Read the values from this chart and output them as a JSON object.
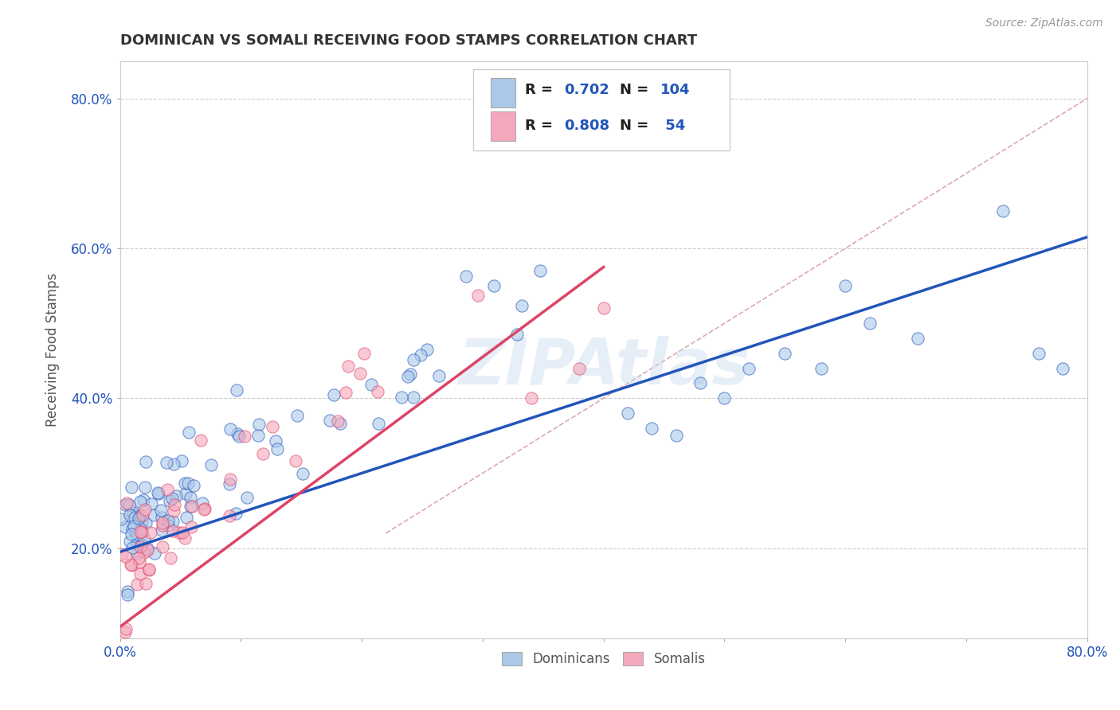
{
  "title": "DOMINICAN VS SOMALI RECEIVING FOOD STAMPS CORRELATION CHART",
  "source_text": "Source: ZipAtlas.com",
  "ylabel": "Receiving Food Stamps",
  "xlim": [
    0.0,
    0.8
  ],
  "ylim": [
    0.08,
    0.85
  ],
  "dominican_R": 0.702,
  "dominican_N": 104,
  "somali_R": 0.808,
  "somali_N": 54,
  "dominican_color": "#aac8e8",
  "somali_color": "#f5a8bc",
  "dominican_line_color": "#2255bb",
  "somali_line_color": "#dd4466",
  "ref_line_color": "#ddaaaa",
  "watermark": "ZIPAtlas",
  "title_color": "#333333",
  "background_color": "#ffffff",
  "grid_color": "#cccccc",
  "legend_color": "#2255bb",
  "dom_line_x": [
    0.0,
    0.8
  ],
  "dom_line_y": [
    0.195,
    0.615
  ],
  "som_line_x": [
    0.0,
    0.4
  ],
  "som_line_y": [
    0.095,
    0.575
  ],
  "ref_line_x": [
    0.22,
    0.8
  ],
  "ref_line_y": [
    0.22,
    0.8
  ]
}
